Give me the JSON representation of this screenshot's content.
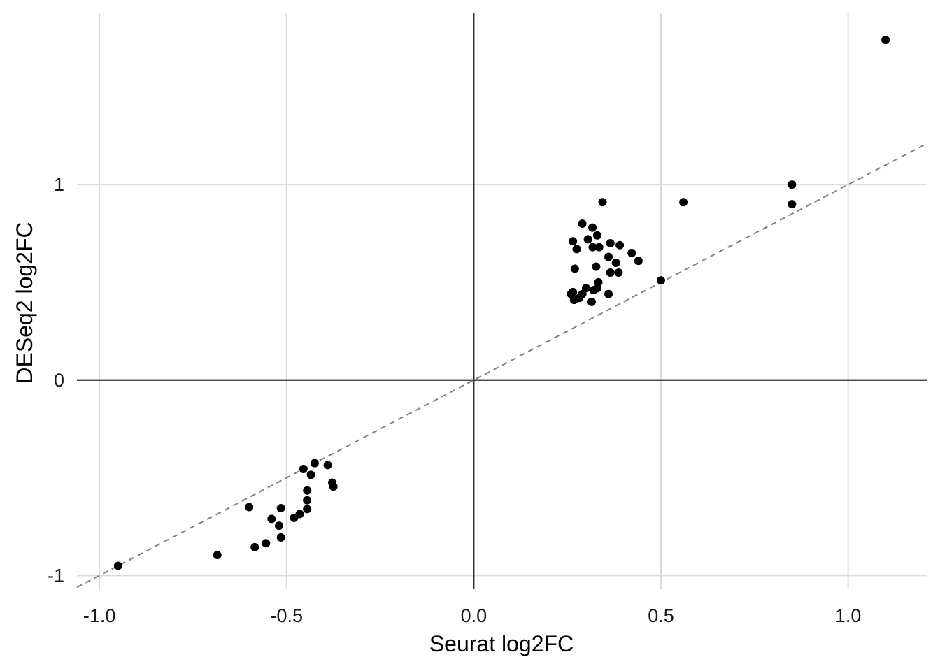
{
  "chart_data": {
    "type": "scatter",
    "title": "",
    "xlabel": "Seurat log2FC",
    "ylabel": "DESeq2 log2FC",
    "xlim": [
      -1.06,
      1.21
    ],
    "ylim": [
      -1.07,
      1.88
    ],
    "x_ticks": [
      -1.0,
      -0.5,
      0.0,
      0.5,
      1.0
    ],
    "x_tick_labels": [
      "-1.0",
      "-0.5",
      "0.0",
      "0.5",
      "1.0"
    ],
    "y_ticks": [
      -1,
      0,
      1
    ],
    "y_tick_labels": [
      "-1",
      "0",
      "1"
    ],
    "grid": true,
    "reference_lines": [
      {
        "kind": "hline",
        "y": 0,
        "style": "solid",
        "color": "#333333"
      },
      {
        "kind": "vline",
        "x": 0,
        "style": "solid",
        "color": "#333333"
      },
      {
        "kind": "identity",
        "slope": 1,
        "intercept": 0,
        "style": "dashed",
        "color": "#808080"
      }
    ],
    "point_color": "#000000",
    "points": [
      {
        "x": 1.1,
        "y": 1.74
      },
      {
        "x": 0.85,
        "y": 1.0
      },
      {
        "x": 0.85,
        "y": 0.9
      },
      {
        "x": 0.56,
        "y": 0.91
      },
      {
        "x": 0.344,
        "y": 0.91
      },
      {
        "x": 0.5,
        "y": 0.51
      },
      {
        "x": 0.29,
        "y": 0.8
      },
      {
        "x": 0.317,
        "y": 0.78
      },
      {
        "x": 0.33,
        "y": 0.74
      },
      {
        "x": 0.305,
        "y": 0.72
      },
      {
        "x": 0.265,
        "y": 0.71
      },
      {
        "x": 0.365,
        "y": 0.7
      },
      {
        "x": 0.39,
        "y": 0.69
      },
      {
        "x": 0.335,
        "y": 0.68
      },
      {
        "x": 0.318,
        "y": 0.68
      },
      {
        "x": 0.275,
        "y": 0.67
      },
      {
        "x": 0.422,
        "y": 0.65
      },
      {
        "x": 0.36,
        "y": 0.63
      },
      {
        "x": 0.44,
        "y": 0.61
      },
      {
        "x": 0.38,
        "y": 0.6
      },
      {
        "x": 0.327,
        "y": 0.58
      },
      {
        "x": 0.27,
        "y": 0.57
      },
      {
        "x": 0.365,
        "y": 0.55
      },
      {
        "x": 0.387,
        "y": 0.55
      },
      {
        "x": 0.333,
        "y": 0.5
      },
      {
        "x": 0.3,
        "y": 0.47
      },
      {
        "x": 0.33,
        "y": 0.47
      },
      {
        "x": 0.32,
        "y": 0.46
      },
      {
        "x": 0.265,
        "y": 0.45
      },
      {
        "x": 0.29,
        "y": 0.44
      },
      {
        "x": 0.26,
        "y": 0.44
      },
      {
        "x": 0.36,
        "y": 0.44
      },
      {
        "x": 0.282,
        "y": 0.42
      },
      {
        "x": 0.268,
        "y": 0.41
      },
      {
        "x": 0.315,
        "y": 0.4
      },
      {
        "x": -0.95,
        "y": -0.95
      },
      {
        "x": -0.685,
        "y": -0.895
      },
      {
        "x": -0.585,
        "y": -0.855
      },
      {
        "x": -0.555,
        "y": -0.835
      },
      {
        "x": -0.515,
        "y": -0.805
      },
      {
        "x": -0.52,
        "y": -0.745
      },
      {
        "x": -0.54,
        "y": -0.71
      },
      {
        "x": -0.6,
        "y": -0.65
      },
      {
        "x": -0.515,
        "y": -0.655
      },
      {
        "x": -0.48,
        "y": -0.705
      },
      {
        "x": -0.465,
        "y": -0.685
      },
      {
        "x": -0.445,
        "y": -0.66
      },
      {
        "x": -0.445,
        "y": -0.615
      },
      {
        "x": -0.445,
        "y": -0.565
      },
      {
        "x": -0.375,
        "y": -0.545
      },
      {
        "x": -0.378,
        "y": -0.525
      },
      {
        "x": -0.435,
        "y": -0.485
      },
      {
        "x": -0.455,
        "y": -0.455
      },
      {
        "x": -0.425,
        "y": -0.425
      },
      {
        "x": -0.39,
        "y": -0.435
      }
    ]
  }
}
